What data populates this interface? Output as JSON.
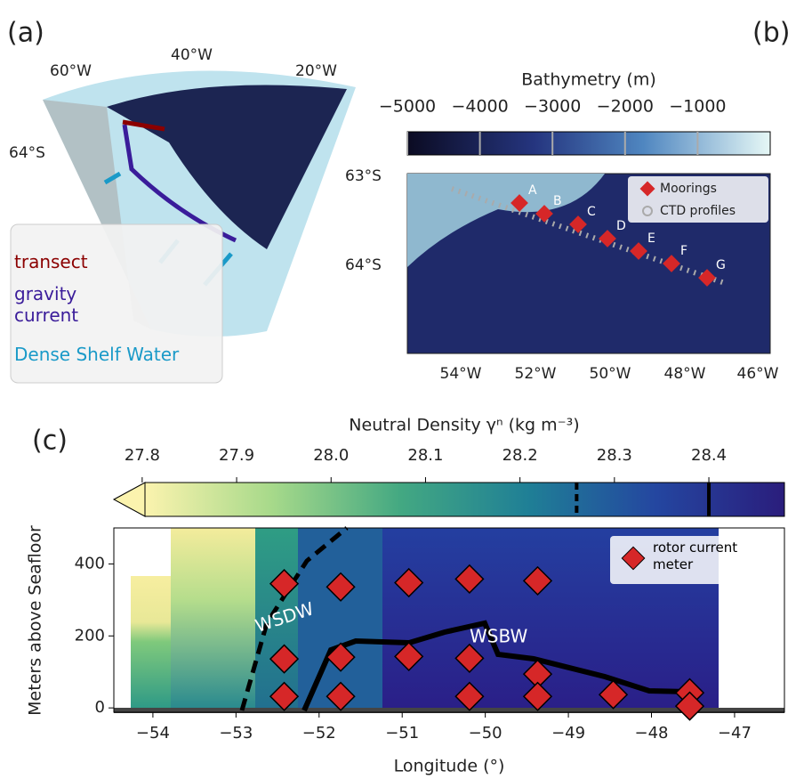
{
  "panel_labels": [
    "(a)",
    "(b)",
    "(c)"
  ],
  "map_a": {
    "lon_labels": [
      "60°W",
      "40°W",
      "20°W"
    ],
    "lat_labels": [
      "64°S"
    ],
    "legend": [
      {
        "label": "transect",
        "color": "#8b0000"
      },
      {
        "label": "gravity current",
        "color": "#3a1c9a"
      },
      {
        "label": "Dense Shelf Water",
        "color": "#1a9ac8"
      }
    ]
  },
  "map_b": {
    "lat_labels": [
      "63°S",
      "64°S"
    ],
    "lon_labels": [
      "54°W",
      "52°W",
      "50°W",
      "48°W",
      "46°W"
    ],
    "mooring_labels": [
      "A",
      "B",
      "C",
      "D",
      "E",
      "F",
      "G"
    ],
    "legend": [
      "Moorings",
      "CTD profiles"
    ]
  },
  "chart_data": [
    {
      "type": "colorbar",
      "title": "Bathymetry (m)",
      "xlim": [
        -5000,
        0
      ],
      "xticks": [
        {
          "value": -5000,
          "label": "−5000"
        },
        {
          "value": -4000,
          "label": "−4000"
        },
        {
          "value": -3000,
          "label": "−3000"
        },
        {
          "value": -2000,
          "label": "−2000"
        },
        {
          "value": -1000,
          "label": "−1000"
        }
      ]
    },
    {
      "type": "scatter",
      "xlabel": "Longitude (°)",
      "ylabel": "Meters above Seafloor",
      "x": [
        -52.42,
        -52.42,
        -52.42,
        -51.74,
        -51.74,
        -51.74,
        -50.92,
        -50.92,
        -50.19,
        -50.19,
        -50.19,
        -49.37,
        -49.37,
        -49.37,
        -48.46,
        -47.54,
        -47.54
      ],
      "series": [
        {
          "name": "rotor current meter",
          "color": "#d62728",
          "values": [
            345,
            136,
            32,
            336,
            141,
            32,
            348,
            143,
            358,
            138,
            32,
            353,
            94,
            32,
            37,
            42,
            5
          ]
        }
      ],
      "xlim": [
        -54.47,
        -46.4
      ],
      "ylim": [
        -12,
        500
      ],
      "xticks": [
        {
          "value": -54,
          "label": "−54"
        },
        {
          "value": -53,
          "label": "−53"
        },
        {
          "value": -52,
          "label": "−52"
        },
        {
          "value": -51,
          "label": "−51"
        },
        {
          "value": -50,
          "label": "−50"
        },
        {
          "value": -49,
          "label": "−49"
        },
        {
          "value": -48,
          "label": "−48"
        },
        {
          "value": -47,
          "label": "−47"
        }
      ],
      "yticks": [
        0,
        200,
        400
      ],
      "annotations": [
        "WSDW",
        "WSBW"
      ],
      "colorbar": {
        "label": "Neutral Density γⁿ (kg m⁻³)",
        "lim": [
          27.77,
          28.48
        ],
        "ticks": [
          27.8,
          27.9,
          {
            "value": 28.0,
            "label": "28.0"
          },
          28.1,
          28.2,
          28.3,
          28.4
        ],
        "dashed_line": 28.26,
        "solid_line": 28.4
      }
    }
  ]
}
